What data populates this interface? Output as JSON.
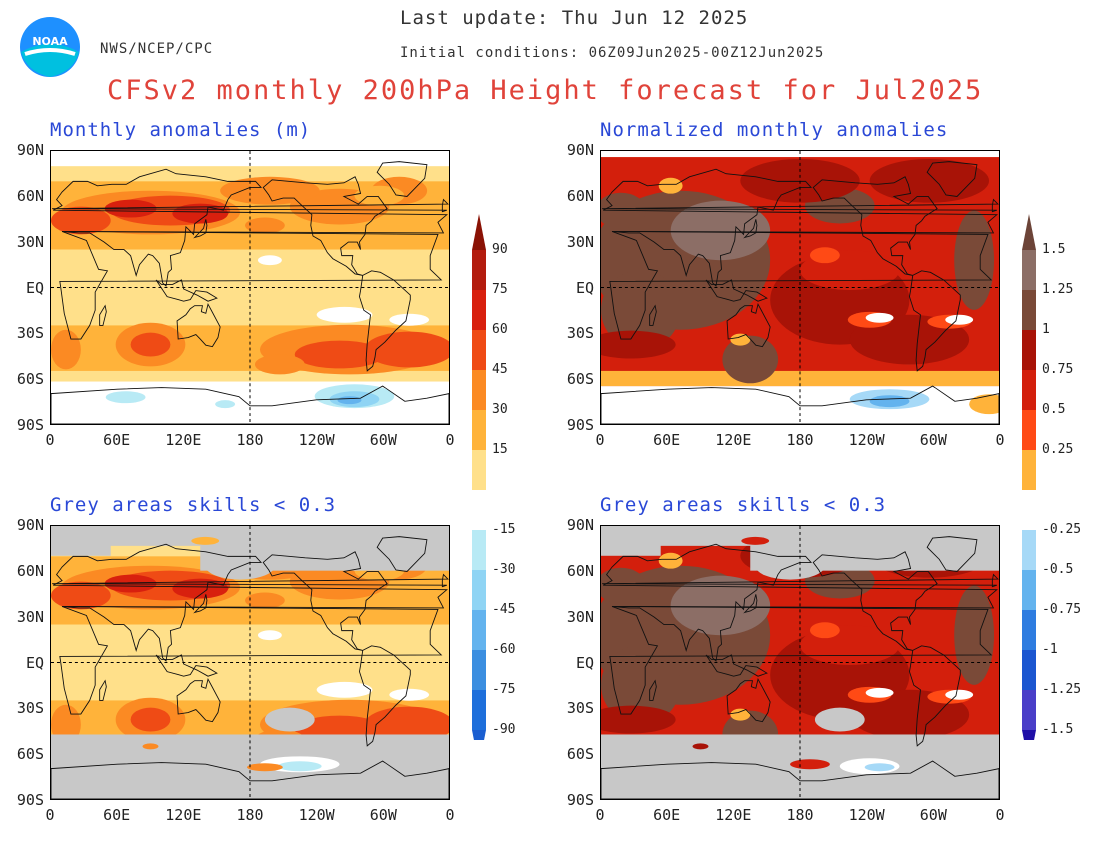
{
  "header": {
    "last_update": "Last update: Thu Jun 12 2025",
    "initial_conditions": "Initial conditions: 06Z09Jun2025-00Z12Jun2025",
    "org": "NWS/NCEP/CPC",
    "main_title": "CFSv2 monthly 200hPa Height forecast for Jul2025",
    "logo_text": "NOAA"
  },
  "panels": {
    "top_left_title": "Monthly anomalies (m)",
    "top_right_title": "Normalized monthly anomalies",
    "bottom_left_title": "Grey areas skills < 0.3",
    "bottom_right_title": "Grey areas skills < 0.3"
  },
  "axes": {
    "lat_top": [
      "90N",
      "60N",
      "30N",
      "EQ",
      "30S",
      "60S",
      "90S"
    ],
    "lat_bottom": [
      "90N",
      "60N",
      "30N",
      "EQ",
      "30S",
      "60S",
      "90S"
    ],
    "lon": [
      "0",
      "60E",
      "120E",
      "180",
      "120W",
      "60W",
      "0"
    ]
  },
  "colorbar_left": {
    "labels": [
      "90",
      "75",
      "60",
      "45",
      "30",
      "15",
      "-15",
      "-30",
      "-45",
      "-60",
      "-75",
      "-90"
    ],
    "colors": [
      "#b31c0e",
      "#d8200e",
      "#ef4b15",
      "#fb8a23",
      "#ffb33a",
      "#ffe08a",
      "#ffffff",
      "#b8eaf5",
      "#8fd4f4",
      "#63b3ee",
      "#3b8ee0",
      "#1e6fdb"
    ],
    "top_triangle_color": "#8a1205",
    "bottom_triangle_color": "#1a5ed1"
  },
  "colorbar_right": {
    "labels": [
      "1.5",
      "1.25",
      "1",
      "0.75",
      "0.5",
      "0.25",
      "-0.25",
      "-0.5",
      "-0.75",
      "-1",
      "-1.25",
      "-1.5"
    ],
    "colors": [
      "#8c6e66",
      "#7a4a38",
      "#a81307",
      "#d31f0c",
      "#ff4a15",
      "#ffb33a",
      "#ffffff",
      "#a6d9f7",
      "#63b3ee",
      "#2e7ce0",
      "#1b56d0",
      "#4a3ec8"
    ],
    "top_triangle_color": "#6c4438",
    "bottom_triangle_color": "#1f0fa8"
  },
  "legend_colors": {
    "skill_mask_grey": "#c8c8c8",
    "title_red": "#e0433a",
    "panel_title_blue": "#2a48d6"
  },
  "map_extent": {
    "lon_min": 0,
    "lon_max": 360,
    "lat_min": -90,
    "lat_max": 90
  }
}
